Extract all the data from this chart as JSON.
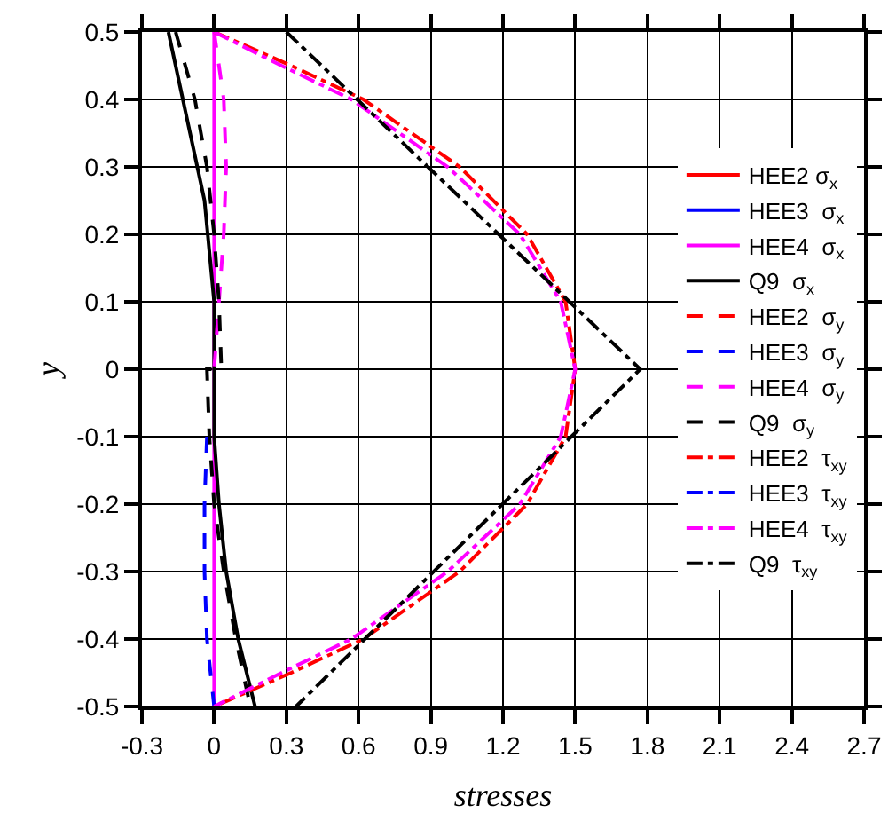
{
  "chart_data": {
    "type": "line",
    "xlabel": "stresses",
    "ylabel": "y",
    "xlim": [
      -0.3,
      2.7
    ],
    "xticks": [
      -0.3,
      0,
      0.3,
      0.6,
      0.9,
      1.2,
      1.5,
      1.8,
      2.1,
      2.4,
      2.7
    ],
    "ylim": [
      -0.5,
      0.5
    ],
    "yticks": [
      -0.5,
      -0.4,
      -0.3,
      -0.2,
      -0.1,
      0,
      0.1,
      0.2,
      0.3,
      0.4,
      0.5
    ],
    "grid": true,
    "legend": "right",
    "marker": "none",
    "series": [
      {
        "name": "HEE2 σ$_{x}$",
        "color": "#ff0000",
        "line_style": "solid",
        "x": [
          null,
          null
        ],
        "values": [
          null,
          null
        ]
      },
      {
        "name": "HEE3  σ$_{x}$",
        "color": "#0000ff",
        "line_style": "solid",
        "x": [
          null,
          null
        ],
        "values": [
          null,
          null
        ]
      },
      {
        "name": "HEE4  σ$_{x}$",
        "color": "#ff00ff",
        "line_style": "solid",
        "x": [
          0,
          0
        ],
        "values": [
          0.5,
          -0.5
        ]
      },
      {
        "name": "Q9  σ$_{x}$",
        "color": "#000000",
        "line_style": "solid",
        "x": [
          -0.19,
          -0.1,
          -0.04,
          0,
          0,
          0.02,
          0.05,
          0.1,
          0.17
        ],
        "values": [
          0.5,
          0.35,
          0.25,
          0.1,
          -0.1,
          -0.2,
          -0.3,
          -0.4,
          -0.5
        ]
      },
      {
        "name": "HEE2  σ$_{y}$",
        "color": "#ff0000",
        "line_style": "dashed",
        "x": [
          null,
          null,
          null,
          null,
          null,
          null,
          null,
          null,
          null,
          null,
          null
        ],
        "values": [
          null,
          null,
          null,
          null,
          null,
          null,
          null,
          null,
          null,
          null,
          null
        ]
      },
      {
        "name": "HEE3  σ$_{y}$",
        "color": "#0000ff",
        "line_style": "dashed",
        "x": [
          null,
          null,
          null,
          null,
          null,
          null,
          -0.03,
          -0.04,
          -0.04,
          -0.03,
          0
        ],
        "values": [
          null,
          null,
          null,
          null,
          null,
          null,
          -0.1,
          -0.2,
          -0.3,
          -0.4,
          -0.5
        ]
      },
      {
        "name": "HEE4  σ$_{y}$",
        "color": "#ff00ff",
        "line_style": "dashed",
        "x": [
          0,
          0.04,
          0.05,
          0.04,
          0.02,
          0,
          null,
          null,
          null,
          null,
          null
        ],
        "values": [
          0.5,
          0.4,
          0.3,
          0.2,
          0.1,
          0,
          null,
          null,
          null,
          null,
          null
        ]
      },
      {
        "name": "Q9  σ$_{y}$",
        "color": "#000000",
        "line_style": "dashed",
        "x": [
          -0.16,
          -0.08,
          -0.03,
          0,
          0.02,
          0.03,
          -0.03,
          -0.02,
          0,
          0.04,
          0.09,
          0.15
        ],
        "values": [
          0.5,
          0.4,
          0.3,
          0.2,
          0.1,
          0,
          0,
          -0.1,
          -0.2,
          -0.3,
          -0.4,
          -0.5
        ]
      },
      {
        "name": "HEE2  τ$_{xy}$",
        "color": "#ff0000",
        "line_style": "dashdot",
        "x": [
          0,
          0.32,
          0.62,
          1.02,
          1.3,
          1.46,
          1.5,
          1.46,
          1.3,
          1.02,
          0.62,
          0.32,
          0
        ],
        "values": [
          0.5,
          0.45,
          0.4,
          0.3,
          0.2,
          0.1,
          0,
          -0.1,
          -0.2,
          -0.3,
          -0.4,
          -0.45,
          -0.5
        ]
      },
      {
        "name": "HEE3  τ$_{xy}$",
        "color": "#0000ff",
        "line_style": "dashdot",
        "x": [
          null,
          null,
          null,
          null,
          null,
          null,
          null,
          null,
          null,
          null,
          null,
          null,
          null
        ],
        "values": [
          null,
          null,
          null,
          null,
          null,
          null,
          null,
          null,
          null,
          null,
          null,
          null,
          null
        ]
      },
      {
        "name": "HEE4  τ$_{xy}$",
        "color": "#ff00ff",
        "line_style": "dashdot",
        "x": [
          0,
          0.28,
          0.57,
          0.97,
          1.27,
          1.44,
          1.5,
          1.44,
          1.27,
          0.97,
          0.57,
          0.28,
          0
        ],
        "values": [
          0.5,
          0.45,
          0.4,
          0.3,
          0.2,
          0.1,
          0,
          -0.1,
          -0.2,
          -0.3,
          -0.4,
          -0.45,
          -0.5
        ]
      },
      {
        "name": "Q9  τ$_{xy}$",
        "color": "#000000",
        "line_style": "dashdot",
        "x": [
          0.3,
          1.77,
          0.34
        ],
        "values": [
          0.5,
          0,
          -0.5
        ]
      }
    ]
  }
}
